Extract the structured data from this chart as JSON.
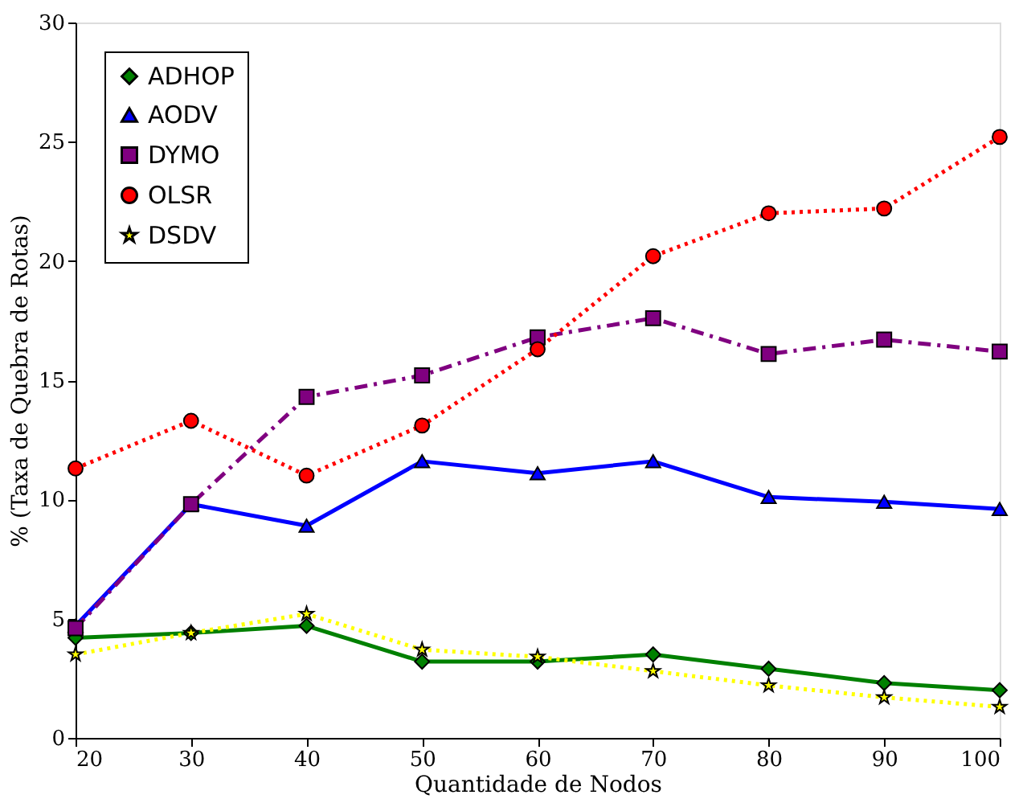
{
  "chart_data": {
    "type": "line",
    "xlabel": "Quantidade de Nodos",
    "ylabel": "% (Taxa de Quebra de Rotas)",
    "x": [
      20,
      30,
      40,
      50,
      60,
      70,
      80,
      90,
      100
    ],
    "xlim": [
      20,
      100
    ],
    "xticks": [
      20,
      30,
      40,
      50,
      60,
      70,
      80,
      90,
      100
    ],
    "ylim": [
      0,
      30
    ],
    "yticks": [
      0,
      5,
      10,
      15,
      20,
      25,
      30
    ],
    "grid": false,
    "legend": "top left",
    "series": [
      {
        "name": "ADHOP",
        "color": "#008000",
        "marker": "diamond",
        "line_style": "solid",
        "values": [
          4.2,
          4.4,
          4.7,
          3.2,
          3.2,
          3.5,
          2.9,
          2.3,
          2.0
        ]
      },
      {
        "name": "AODV",
        "color": "#0000ff",
        "marker": "triangle",
        "line_style": "solid",
        "values": [
          4.7,
          9.8,
          8.9,
          11.6,
          11.1,
          11.6,
          10.1,
          9.9,
          9.6
        ]
      },
      {
        "name": "DYMO",
        "color": "#800080",
        "marker": "square",
        "line_style": "dashed",
        "values": [
          4.6,
          9.8,
          14.3,
          15.2,
          16.8,
          17.6,
          16.1,
          16.7,
          16.2
        ]
      },
      {
        "name": "OLSR",
        "color": "#ff0000",
        "marker": "circle",
        "line_style": "dotted",
        "values": [
          11.3,
          13.3,
          11.0,
          13.1,
          16.3,
          20.2,
          22.0,
          22.2,
          25.2
        ]
      },
      {
        "name": "DSDV",
        "color": "#ffff00",
        "marker": "star",
        "line_style": "dotted",
        "values": [
          3.5,
          4.4,
          5.2,
          3.7,
          3.4,
          2.8,
          2.2,
          1.7,
          1.3
        ]
      }
    ]
  }
}
